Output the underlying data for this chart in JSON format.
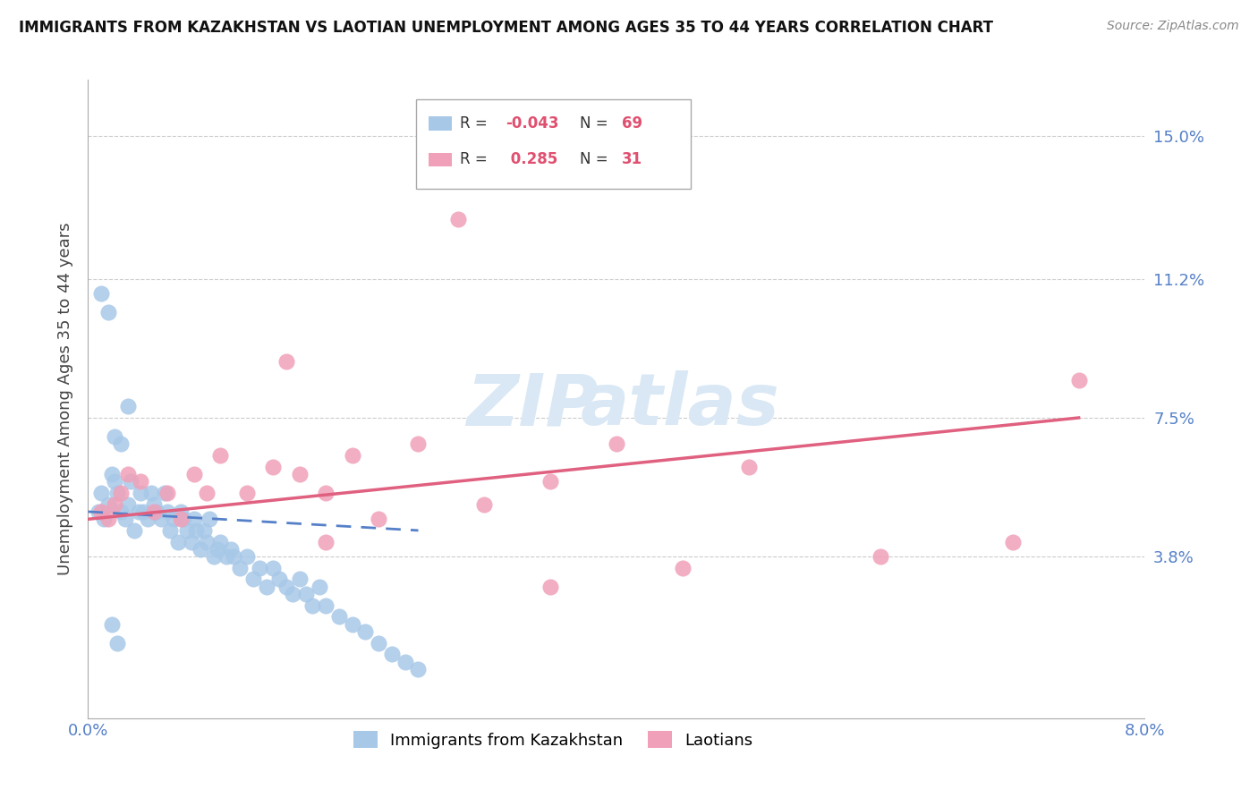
{
  "title": "IMMIGRANTS FROM KAZAKHSTAN VS LAOTIAN UNEMPLOYMENT AMONG AGES 35 TO 44 YEARS CORRELATION CHART",
  "source": "Source: ZipAtlas.com",
  "ylabel": "Unemployment Among Ages 35 to 44 years",
  "xlim": [
    0.0,
    0.08
  ],
  "ylim": [
    -0.005,
    0.165
  ],
  "yticks": [
    0.038,
    0.075,
    0.112,
    0.15
  ],
  "ytick_labels": [
    "3.8%",
    "7.5%",
    "11.2%",
    "15.0%"
  ],
  "xtick_positions": [
    0.0,
    0.08
  ],
  "xtick_labels": [
    "0.0%",
    "8.0%"
  ],
  "color_blue": "#a8c8e8",
  "color_pink": "#f0a0b8",
  "color_blue_line": "#5580c8",
  "color_pink_line": "#e06080",
  "color_axis_labels": "#5580c8",
  "color_grid": "#cccccc",
  "blue_x": [
    0.0008,
    0.001,
    0.0012,
    0.0015,
    0.0018,
    0.002,
    0.0022,
    0.0025,
    0.0028,
    0.003,
    0.0032,
    0.0035,
    0.0038,
    0.004,
    0.0042,
    0.0045,
    0.0048,
    0.005,
    0.0052,
    0.0055,
    0.0058,
    0.006,
    0.0062,
    0.0065,
    0.0068,
    0.007,
    0.0072,
    0.0075,
    0.0078,
    0.008,
    0.0082,
    0.0085,
    0.0088,
    0.009,
    0.0092,
    0.0095,
    0.0098,
    0.01,
    0.0105,
    0.0108,
    0.011,
    0.0115,
    0.012,
    0.0125,
    0.013,
    0.0135,
    0.014,
    0.0145,
    0.015,
    0.0155,
    0.016,
    0.0165,
    0.017,
    0.0175,
    0.018,
    0.019,
    0.02,
    0.021,
    0.022,
    0.023,
    0.024,
    0.025,
    0.001,
    0.0015,
    0.002,
    0.0025,
    0.003,
    0.0018,
    0.0022
  ],
  "blue_y": [
    0.05,
    0.055,
    0.048,
    0.052,
    0.06,
    0.058,
    0.055,
    0.05,
    0.048,
    0.052,
    0.058,
    0.045,
    0.05,
    0.055,
    0.05,
    0.048,
    0.055,
    0.052,
    0.05,
    0.048,
    0.055,
    0.05,
    0.045,
    0.048,
    0.042,
    0.05,
    0.048,
    0.045,
    0.042,
    0.048,
    0.045,
    0.04,
    0.045,
    0.042,
    0.048,
    0.038,
    0.04,
    0.042,
    0.038,
    0.04,
    0.038,
    0.035,
    0.038,
    0.032,
    0.035,
    0.03,
    0.035,
    0.032,
    0.03,
    0.028,
    0.032,
    0.028,
    0.025,
    0.03,
    0.025,
    0.022,
    0.02,
    0.018,
    0.015,
    0.012,
    0.01,
    0.008,
    0.108,
    0.103,
    0.07,
    0.068,
    0.078,
    0.02,
    0.015
  ],
  "pink_x": [
    0.001,
    0.0015,
    0.002,
    0.0025,
    0.003,
    0.004,
    0.005,
    0.006,
    0.007,
    0.008,
    0.009,
    0.01,
    0.012,
    0.014,
    0.016,
    0.018,
    0.02,
    0.025,
    0.03,
    0.035,
    0.04,
    0.045,
    0.05,
    0.028,
    0.015,
    0.018,
    0.022,
    0.035,
    0.06,
    0.07,
    0.075
  ],
  "pink_y": [
    0.05,
    0.048,
    0.052,
    0.055,
    0.06,
    0.058,
    0.05,
    0.055,
    0.048,
    0.06,
    0.055,
    0.065,
    0.055,
    0.062,
    0.06,
    0.055,
    0.065,
    0.068,
    0.052,
    0.058,
    0.068,
    0.035,
    0.062,
    0.128,
    0.09,
    0.042,
    0.048,
    0.03,
    0.038,
    0.042,
    0.085
  ],
  "blue_line_x": [
    0.0,
    0.025
  ],
  "blue_line_y_start": 0.05,
  "blue_line_y_end": 0.045,
  "pink_line_x": [
    0.0,
    0.075
  ],
  "pink_line_y_start": 0.048,
  "pink_line_y_end": 0.075
}
